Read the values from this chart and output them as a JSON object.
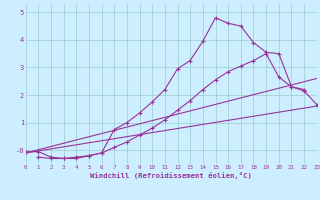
{
  "xlabel": "Windchill (Refroidissement éolien,°C)",
  "bg_color": "#cceeff",
  "line_color": "#993399",
  "grid_color": "#99cccc",
  "xlim": [
    0,
    23
  ],
  "ylim": [
    -0.5,
    5.3
  ],
  "xticks": [
    0,
    1,
    2,
    3,
    4,
    5,
    6,
    7,
    8,
    9,
    10,
    11,
    12,
    13,
    14,
    15,
    16,
    17,
    18,
    19,
    20,
    21,
    22,
    23
  ],
  "yticks": [
    0,
    1,
    2,
    3,
    4,
    5
  ],
  "ytick_labels": [
    "-0",
    "1",
    "2",
    "3",
    "4",
    "5"
  ],
  "series": [
    {
      "x": [
        0,
        23
      ],
      "y": [
        -0.1,
        1.6
      ],
      "marker": false
    },
    {
      "x": [
        0,
        23
      ],
      "y": [
        -0.1,
        2.6
      ],
      "marker": false
    },
    {
      "x": [
        1,
        2,
        3,
        4,
        5,
        6,
        7,
        8,
        9,
        10,
        11,
        12,
        13,
        14,
        15,
        16,
        17,
        18,
        19,
        20,
        21,
        22
      ],
      "y": [
        -0.25,
        -0.3,
        -0.3,
        -0.25,
        -0.2,
        -0.1,
        0.75,
        1.0,
        1.35,
        1.75,
        2.2,
        2.95,
        3.25,
        3.95,
        4.8,
        4.6,
        4.5,
        3.9,
        3.55,
        3.5,
        2.3,
        2.2
      ],
      "marker": true
    },
    {
      "x": [
        0,
        1,
        2,
        3,
        4,
        5,
        6,
        7,
        8,
        9,
        10,
        11,
        12,
        13,
        14,
        15,
        16,
        17,
        18,
        19,
        20,
        21,
        22,
        23
      ],
      "y": [
        -0.05,
        -0.05,
        -0.25,
        -0.3,
        -0.3,
        -0.2,
        -0.1,
        0.1,
        0.3,
        0.55,
        0.8,
        1.1,
        1.45,
        1.8,
        2.2,
        2.55,
        2.85,
        3.05,
        3.25,
        3.5,
        2.65,
        2.3,
        2.15,
        1.65
      ],
      "marker": true
    }
  ]
}
